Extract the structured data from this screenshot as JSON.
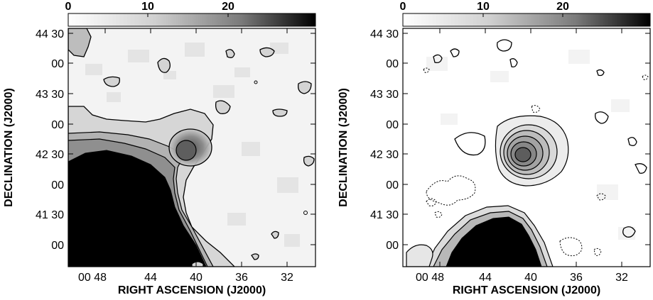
{
  "figure": {
    "colorbar_ticks": [
      "0",
      "10",
      "20"
    ],
    "y_ticks": [
      "44 30",
      "00",
      "43 30",
      "00",
      "42 30",
      "00",
      "41 30",
      "00"
    ],
    "x_ticks": [
      "00 48",
      "44",
      "40",
      "36",
      "32"
    ],
    "xlabel": "RIGHT ASCENSION (J2000)",
    "ylabel": "DECLINATION (J2000)",
    "colormap": [
      "#ffffff",
      "#000000"
    ]
  },
  "panels": [
    {
      "id": "left",
      "contour_color": "#000000",
      "background": "#f2f2f2"
    },
    {
      "id": "right",
      "contour_color": "#000000",
      "background": "#ffffff"
    }
  ]
}
